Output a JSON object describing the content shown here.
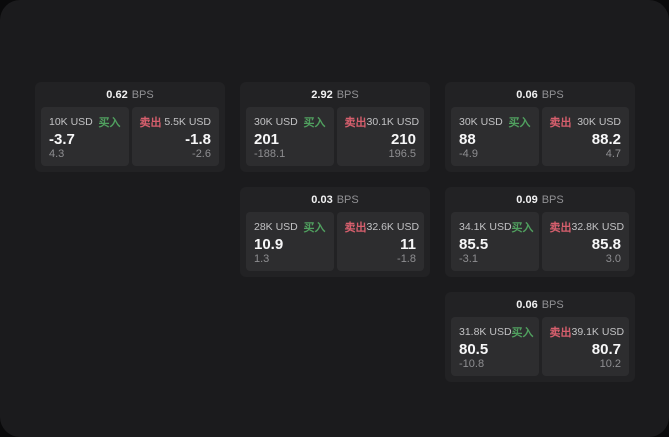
{
  "labels": {
    "bps": "BPS",
    "buy": "买入",
    "sell": "卖出"
  },
  "colors": {
    "page_bg": "#1b1b1d",
    "outer_bg": "#0a0a0b",
    "card_bg": "#222224",
    "panel_bg": "#2d2d2f",
    "buy_green": "#50a05f",
    "sell_red": "#d65f6d",
    "text_primary": "#f7f7f8",
    "text_secondary": "#c2c2c4",
    "text_muted": "#8e8e91"
  },
  "cards": [
    {
      "col": 1,
      "row": 1,
      "bps": "0.62",
      "buy": {
        "amount": "10K USD",
        "price": "-3.7",
        "delta": "4.3"
      },
      "sell": {
        "amount": "5.5K USD",
        "price": "-1.8",
        "delta": "-2.6"
      }
    },
    {
      "col": 2,
      "row": 1,
      "bps": "2.92",
      "buy": {
        "amount": "30K USD",
        "price": "201",
        "delta": "-188.1"
      },
      "sell": {
        "amount": "30.1K USD",
        "price": "210",
        "delta": "196.5"
      }
    },
    {
      "col": 3,
      "row": 1,
      "bps": "0.06",
      "buy": {
        "amount": "30K USD",
        "price": "88",
        "delta": "-4.9"
      },
      "sell": {
        "amount": "30K USD",
        "price": "88.2",
        "delta": "4.7"
      }
    },
    {
      "col": 2,
      "row": 2,
      "bps": "0.03",
      "buy": {
        "amount": "28K USD",
        "price": "10.9",
        "delta": "1.3"
      },
      "sell": {
        "amount": "32.6K USD",
        "price": "11",
        "delta": "-1.8"
      }
    },
    {
      "col": 3,
      "row": 2,
      "bps": "0.09",
      "buy": {
        "amount": "34.1K USD",
        "price": "85.5",
        "delta": "-3.1"
      },
      "sell": {
        "amount": "32.8K USD",
        "price": "85.8",
        "delta": "3.0"
      }
    },
    {
      "col": 3,
      "row": 3,
      "bps": "0.06",
      "buy": {
        "amount": "31.8K USD",
        "price": "80.5",
        "delta": "-10.8"
      },
      "sell": {
        "amount": "39.1K USD",
        "price": "80.7",
        "delta": "10.2"
      }
    }
  ]
}
